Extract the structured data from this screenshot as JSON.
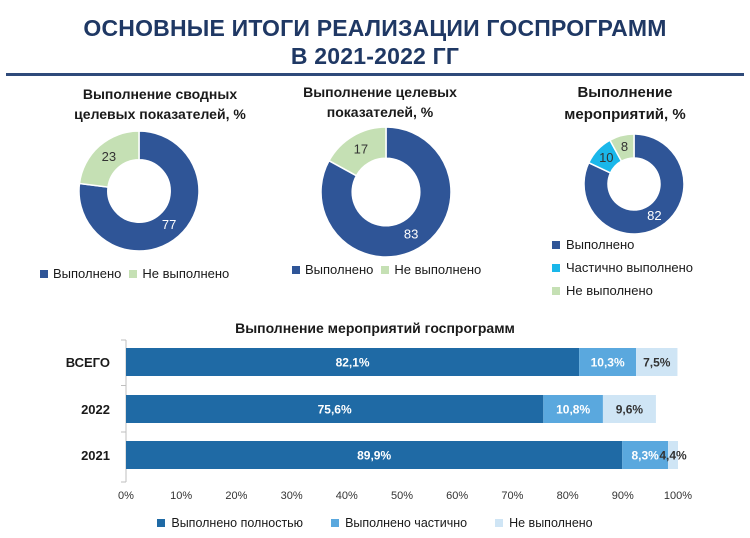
{
  "header": {
    "title_line1": "ОСНОВНЫЕ ИТОГИ РЕАЛИЗАЦИИ ГОСПРОГРАММ",
    "title_line2": "В 2021-2022 ГГ"
  },
  "colors": {
    "done": "#2f5597",
    "partial": "#1ab7ea",
    "not_done": "#c5e0b4",
    "bar_full": "#1f6aa5",
    "bar_partial": "#5aa8de",
    "bar_not": "#cfe5f5"
  },
  "chart_data": [
    {
      "type": "pie",
      "title_line1": "Выполнение сводных",
      "title_line2": "целевых показателей, %",
      "categories": [
        "Выполнено",
        "Не выполнено"
      ],
      "values": [
        77,
        23
      ],
      "legend": [
        "Выполнено",
        "Не выполнено"
      ],
      "labels": [
        "77",
        "23"
      ]
    },
    {
      "type": "pie",
      "title_line1": "Выполнение целевых",
      "title_line2": "показателей, %",
      "categories": [
        "Выполнено",
        "Не выполнено"
      ],
      "values": [
        83,
        17
      ],
      "legend": [
        "Выполнено",
        "Не выполнено"
      ],
      "labels": [
        "83",
        "17"
      ]
    },
    {
      "type": "pie",
      "title_line1": "Выполнение",
      "title_line2": "мероприятий, %",
      "categories": [
        "Выполнено",
        "Частично выполнено",
        "Не выполнено"
      ],
      "values": [
        82,
        10,
        8
      ],
      "legend": [
        "Выполнено",
        "Частично выполнено",
        "Не выполнено"
      ],
      "labels": [
        "82",
        "10",
        "8"
      ]
    },
    {
      "type": "bar",
      "orientation": "horizontal",
      "stacked": "percent",
      "title": "Выполнение мероприятий госпрограмм",
      "categories": [
        "ВСЕГО",
        "2022",
        "2021"
      ],
      "series": [
        {
          "name": "Выполнено полностью",
          "values": [
            82.1,
            75.6,
            89.9
          ],
          "labels": [
            "82,1%",
            "75,6%",
            "89,9%"
          ]
        },
        {
          "name": "Выполнено частично",
          "values": [
            10.3,
            10.8,
            8.3
          ],
          "labels": [
            "10,3%",
            "10,8%",
            "8,3%"
          ]
        },
        {
          "name": "Не выполнено",
          "values": [
            7.5,
            9.6,
            4.4
          ],
          "labels": [
            "7,5%",
            "9,6%",
            "4,4%"
          ]
        }
      ],
      "xlim": [
        0,
        100
      ],
      "xticks": [
        "0%",
        "10%",
        "20%",
        "30%",
        "40%",
        "50%",
        "60%",
        "70%",
        "80%",
        "90%",
        "100%"
      ],
      "legend_position": "bottom"
    }
  ]
}
